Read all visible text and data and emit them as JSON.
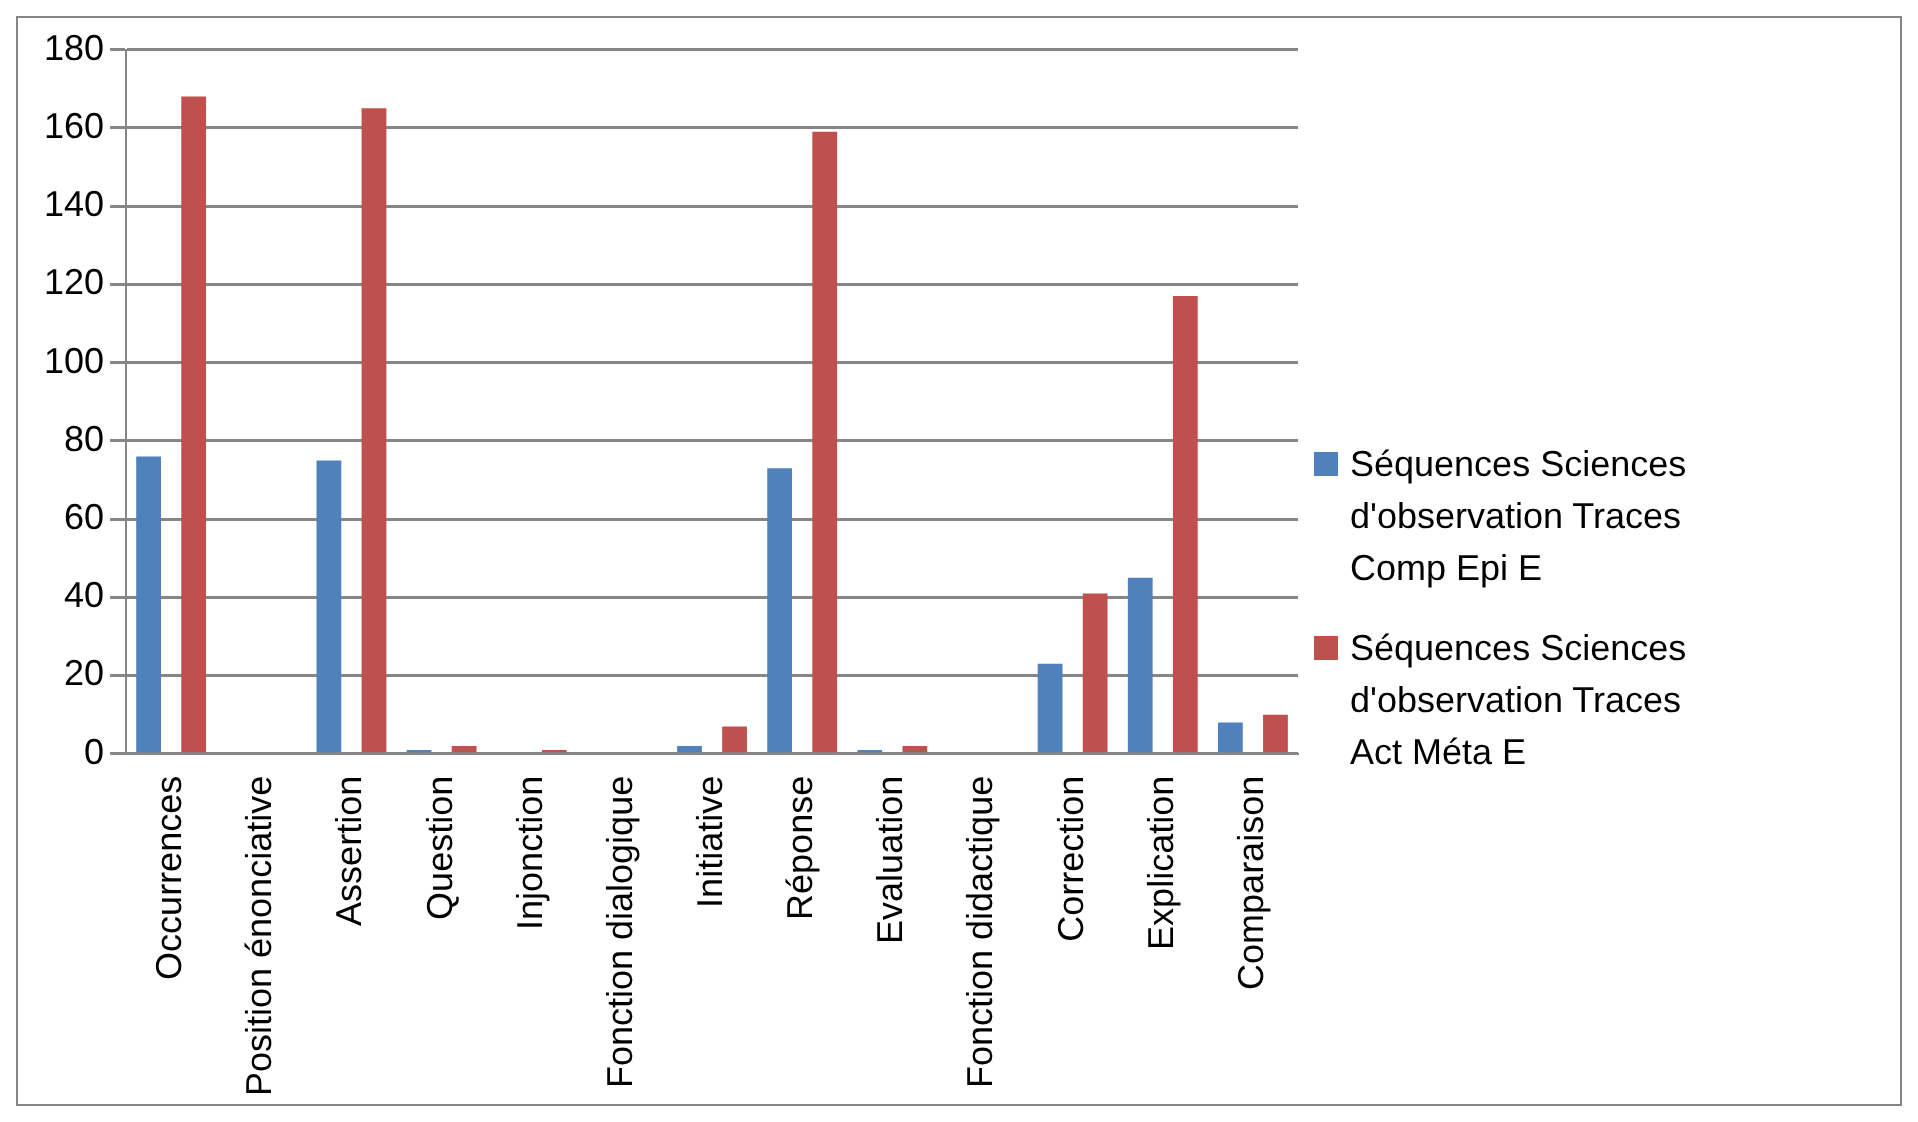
{
  "chart_data": {
    "type": "bar",
    "categories": [
      "Occurrences",
      "Position énonciative",
      "Assertion",
      "Question",
      "Injonction",
      "Fonction dialogique",
      "Initiative",
      "Réponse",
      "Evaluation",
      "Fonction didactique",
      "Correction",
      "Explication",
      "Comparaison"
    ],
    "series": [
      {
        "name": "Séquences Sciences d'observation Traces Comp Epi E",
        "color": "#4f81bd",
        "values": [
          76,
          0,
          75,
          1,
          0,
          0,
          2,
          73,
          1,
          0,
          23,
          45,
          8
        ]
      },
      {
        "name": "Séquences Sciences d'observation Traces Act Méta E",
        "color": "#c0504d",
        "values": [
          168,
          0,
          165,
          2,
          1,
          0,
          7,
          159,
          2,
          0,
          41,
          117,
          10
        ]
      }
    ],
    "ylim": [
      0,
      180
    ],
    "yticks": [
      0,
      20,
      40,
      60,
      80,
      100,
      120,
      140,
      160,
      180
    ],
    "grid": "y",
    "legend": "right"
  }
}
